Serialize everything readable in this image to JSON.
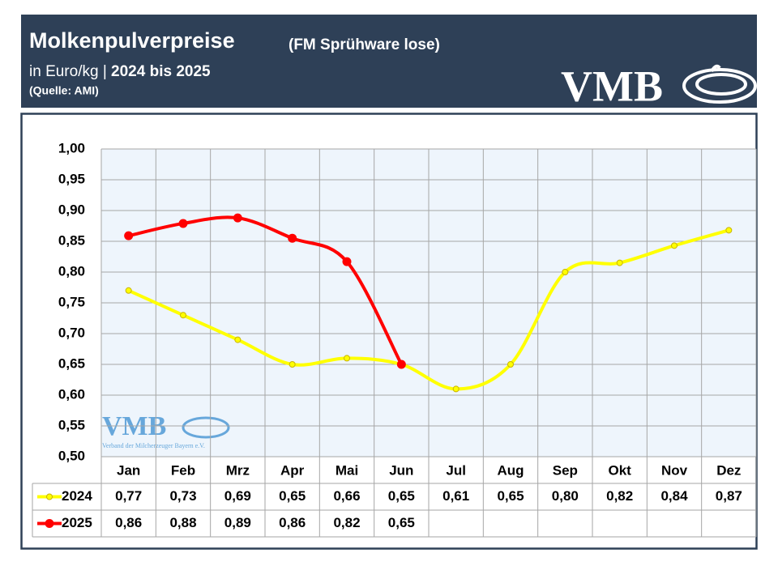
{
  "chart_data": {
    "type": "line",
    "title": "Molkenpulverpreise",
    "title_suffix": "(FM Sprühware lose)",
    "subtitle": "in Euro/kg | ",
    "subtitle_bold": "2024 bis 2025",
    "source": "(Quelle: AMI)",
    "logo": "VMB",
    "logo_caption": "Verband der Milcherzeuger Bayern e.V.",
    "categories": [
      "Jan",
      "Feb",
      "Mrz",
      "Apr",
      "Mai",
      "Jun",
      "Jul",
      "Aug",
      "Sep",
      "Okt",
      "Nov",
      "Dez"
    ],
    "series": [
      {
        "name": "2024",
        "color": "#ffff00",
        "marker_stroke": "#c8b400",
        "values": [
          0.77,
          0.73,
          0.69,
          0.65,
          0.66,
          0.65,
          0.61,
          0.65,
          0.8,
          0.815,
          0.843,
          0.868
        ],
        "value_labels": [
          "0,77",
          "0,73",
          "0,69",
          "0,65",
          "0,66",
          "0,65",
          "0,61",
          "0,65",
          "0,80",
          "0,82",
          "0,84",
          "0,87"
        ]
      },
      {
        "name": "2025",
        "color": "#ff0000",
        "marker_stroke": "#ff0000",
        "values": [
          0.859,
          0.879,
          0.888,
          0.855,
          0.817,
          0.65,
          null,
          null,
          null,
          null,
          null,
          null
        ],
        "value_labels": [
          "0,86",
          "0,88",
          "0,89",
          "0,86",
          "0,82",
          "0,65",
          null,
          null,
          null,
          null,
          null,
          null
        ]
      }
    ],
    "ylim": [
      0.5,
      1.0
    ],
    "yticks": [
      {
        "value": 0.5,
        "label": "0,50"
      },
      {
        "value": 0.55,
        "label": "0,55"
      },
      {
        "value": 0.6,
        "label": "0,60"
      },
      {
        "value": 0.65,
        "label": "0,65"
      },
      {
        "value": 0.7,
        "label": "0,70"
      },
      {
        "value": 0.75,
        "label": "0,75"
      },
      {
        "value": 0.8,
        "label": "0,80"
      },
      {
        "value": 0.85,
        "label": "0,85"
      },
      {
        "value": 0.9,
        "label": "0,90"
      },
      {
        "value": 0.95,
        "label": "0,95"
      },
      {
        "value": 1.0,
        "label": "1,00"
      }
    ],
    "grid": true
  }
}
